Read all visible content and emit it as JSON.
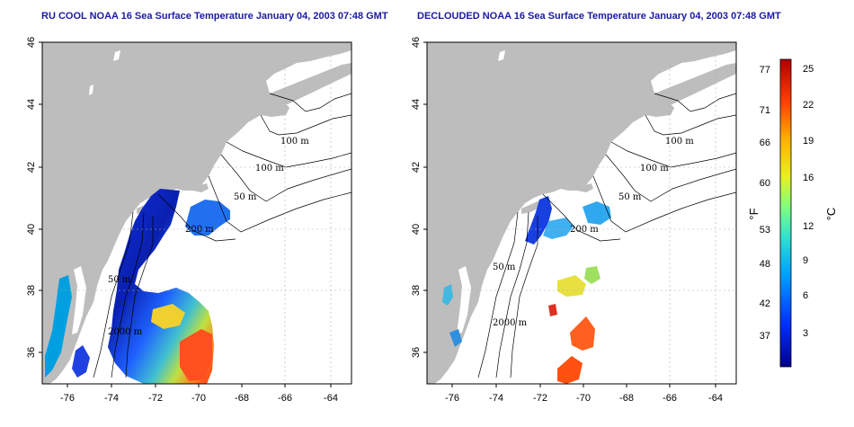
{
  "panels": [
    {
      "id": "left",
      "title": "RU COOL NOAA 16 Sea Surface Temperature January 04, 2003 07:48 GMT",
      "contours": [
        "100 m",
        "100 m",
        "50 m",
        "200 m",
        "50 m",
        "2000 m"
      ]
    },
    {
      "id": "right",
      "title": "DECLOUDED NOAA 16 Sea Surface Temperature January 04, 2003 07:48 GMT",
      "contours": [
        "100 m",
        "100 m",
        "50 m",
        "200 m",
        "50 m",
        "2000 m"
      ]
    }
  ],
  "axes": {
    "x_ticks": [
      "-76",
      "-74",
      "-72",
      "-70",
      "-68",
      "-66",
      "-64"
    ],
    "y_ticks": [
      "46",
      "44",
      "42",
      "40",
      "38",
      "36"
    ]
  },
  "colorbar": {
    "fahrenheit_ticks": [
      "77",
      "71",
      "66",
      "60",
      "53",
      "48",
      "42",
      "37"
    ],
    "celsius_ticks": [
      "25",
      "22",
      "19",
      "16",
      "12",
      "9",
      "6",
      "3"
    ],
    "fahrenheit_unit": "°F",
    "celsius_unit": "°C",
    "colors": [
      "#00008a",
      "#0030ff",
      "#00a0ff",
      "#30e0d0",
      "#80ff80",
      "#e8f020",
      "#ffb000",
      "#ff4000",
      "#b00000"
    ]
  },
  "colors": {
    "land": "#bdbdbd",
    "frame": "#000000",
    "grid": "#b0b0b0",
    "title": "#1a1aa6"
  }
}
